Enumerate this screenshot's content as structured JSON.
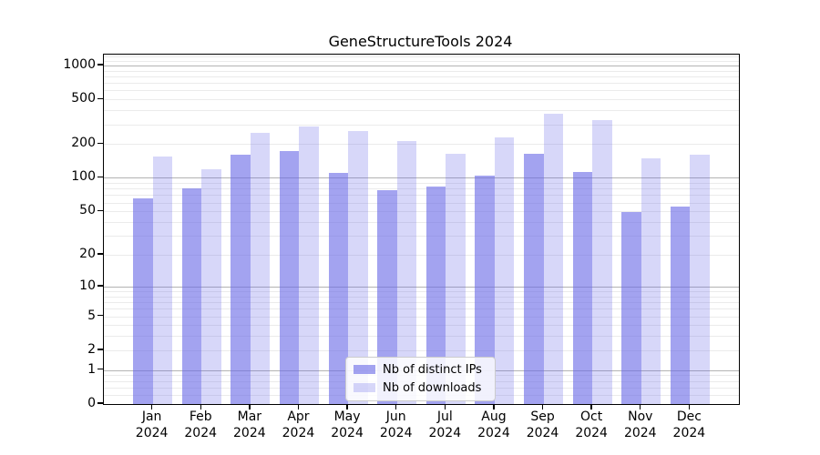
{
  "chart_data": {
    "type": "bar",
    "title": "GeneStructureTools 2024",
    "categories": [
      "Jan",
      "Feb",
      "Mar",
      "Apr",
      "May",
      "Jun",
      "Jul",
      "Aug",
      "Sep",
      "Oct",
      "Nov",
      "Dec"
    ],
    "category_year": "2024",
    "series": [
      {
        "name": "Nb of distinct IPs",
        "color": "#a4a4f0",
        "fill": "rgba(102,102,230,0.6)",
        "values": [
          65,
          80,
          160,
          175,
          110,
          78,
          84,
          104,
          165,
          113,
          49,
          55
        ]
      },
      {
        "name": "Nb of downloads",
        "color": "#d8d8f8",
        "fill": "rgba(102,102,230,0.26)",
        "values": [
          155,
          120,
          250,
          285,
          260,
          215,
          165,
          230,
          370,
          330,
          150,
          160
        ]
      }
    ],
    "y_axis": {
      "scale": "log1p",
      "ticks": [
        0,
        1,
        2,
        5,
        10,
        20,
        50,
        100,
        200,
        500,
        1000
      ],
      "limit_top": 1260,
      "major_gridlines": [
        1,
        10,
        100,
        1000
      ],
      "minor_gridlines": [
        0.2,
        0.4,
        0.6,
        0.8,
        2,
        3,
        4,
        5,
        6,
        7,
        8,
        9,
        20,
        30,
        40,
        50,
        60,
        70,
        80,
        90,
        200,
        300,
        400,
        500,
        600,
        700,
        800,
        900,
        1100,
        1200
      ],
      "major_grid_color": "#b3b3b3",
      "minor_grid_color": "#ebebeb"
    },
    "legend": {
      "position": "lower-center-inside",
      "items": [
        "Nb of distinct IPs",
        "Nb of downloads"
      ]
    },
    "xlabel": "",
    "ylabel": ""
  }
}
